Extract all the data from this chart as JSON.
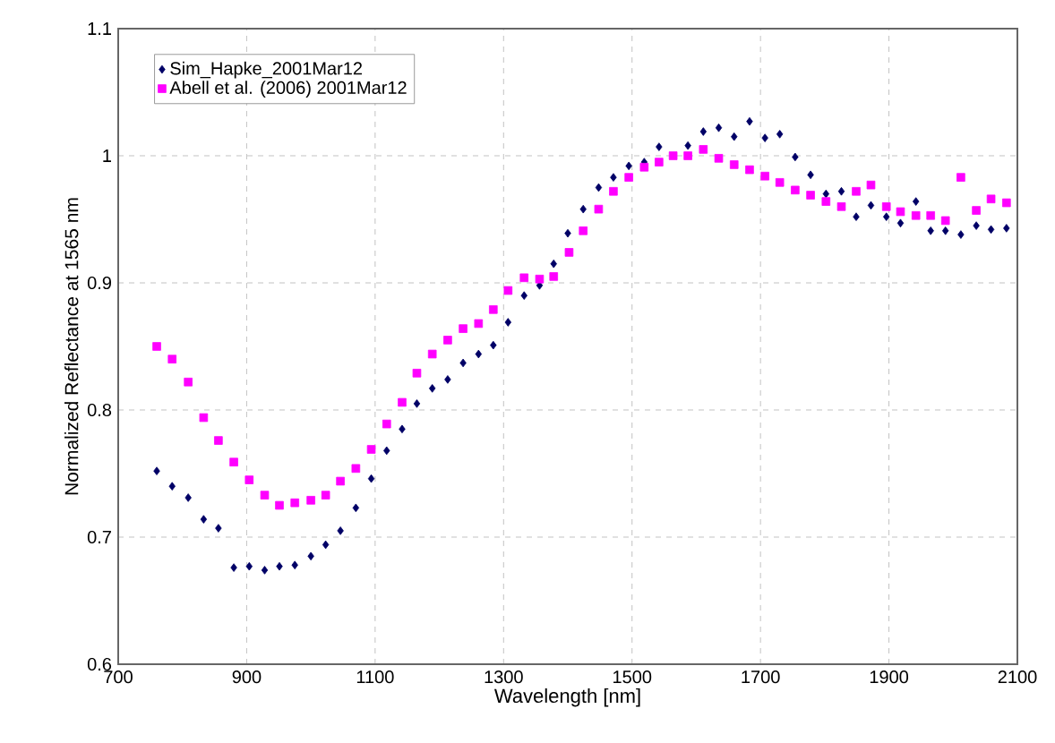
{
  "chart_data": {
    "type": "scatter",
    "xlabel": "Wavelength [nm]",
    "ylabel": "Normalized Reflectance at 1565 nm",
    "xlim": [
      700,
      2100
    ],
    "xticks": [
      700,
      900,
      1100,
      1300,
      1500,
      1700,
      1900,
      2100
    ],
    "ylim": [
      0.6,
      1.1
    ],
    "yticks": [
      0.6,
      0.7,
      0.8,
      0.9,
      1,
      1.1
    ],
    "grid": true,
    "legend": "top left",
    "series": [
      {
        "name": "Sim_Hapke_2001Mar12",
        "color": "#000066",
        "marker": "diamond",
        "x": [
          760,
          784,
          809,
          833,
          856,
          880,
          904,
          928,
          951,
          975,
          1000,
          1023,
          1046,
          1070,
          1094,
          1118,
          1142,
          1165,
          1189,
          1213,
          1237,
          1261,
          1284,
          1307,
          1332,
          1356,
          1378,
          1400,
          1424,
          1448,
          1471,
          1495,
          1519,
          1542,
          1587,
          1611,
          1635,
          1659,
          1683,
          1707,
          1730,
          1754,
          1778,
          1802,
          1826,
          1849,
          1872,
          1896,
          1918,
          1942,
          1965,
          1988,
          2012,
          2036,
          2059,
          2083
        ],
        "values": [
          0.752,
          0.74,
          0.731,
          0.714,
          0.707,
          0.676,
          0.677,
          0.674,
          0.677,
          0.678,
          0.685,
          0.694,
          0.705,
          0.723,
          0.746,
          0.768,
          0.785,
          0.805,
          0.817,
          0.824,
          0.837,
          0.844,
          0.851,
          0.869,
          0.89,
          0.898,
          0.915,
          0.939,
          0.958,
          0.975,
          0.983,
          0.992,
          0.995,
          1.007,
          1.008,
          1.019,
          1.022,
          1.015,
          1.027,
          1.014,
          1.017,
          0.999,
          0.985,
          0.97,
          0.972,
          0.952,
          0.961,
          0.952,
          0.947,
          0.964,
          0.941,
          0.941,
          0.938,
          0.945,
          0.942,
          0.943
        ]
      },
      {
        "name": "Abell et al. (2006) 2001Mar12",
        "color": "#ff00ff",
        "marker": "square",
        "x": [
          760,
          784,
          809,
          833,
          856,
          880,
          904,
          928,
          951,
          975,
          1000,
          1023,
          1046,
          1070,
          1094,
          1118,
          1142,
          1165,
          1189,
          1213,
          1237,
          1261,
          1284,
          1307,
          1332,
          1356,
          1378,
          1402,
          1424,
          1448,
          1471,
          1495,
          1519,
          1542,
          1564,
          1587,
          1611,
          1635,
          1659,
          1683,
          1707,
          1730,
          1754,
          1778,
          1802,
          1826,
          1849,
          1872,
          1896,
          1918,
          1942,
          1965,
          1988,
          2012,
          2036,
          2059,
          2083
        ],
        "values": [
          0.85,
          0.84,
          0.822,
          0.794,
          0.776,
          0.759,
          0.745,
          0.733,
          0.725,
          0.727,
          0.729,
          0.733,
          0.744,
          0.754,
          0.769,
          0.789,
          0.806,
          0.829,
          0.844,
          0.855,
          0.864,
          0.868,
          0.879,
          0.894,
          0.904,
          0.903,
          0.905,
          0.924,
          0.941,
          0.958,
          0.972,
          0.983,
          0.991,
          0.995,
          1.0,
          1.0,
          1.005,
          0.998,
          0.993,
          0.989,
          0.984,
          0.979,
          0.973,
          0.969,
          0.964,
          0.96,
          0.972,
          0.977,
          0.96,
          0.956,
          0.953,
          0.953,
          0.949,
          0.983,
          0.957,
          0.966,
          0.963
        ]
      }
    ]
  }
}
